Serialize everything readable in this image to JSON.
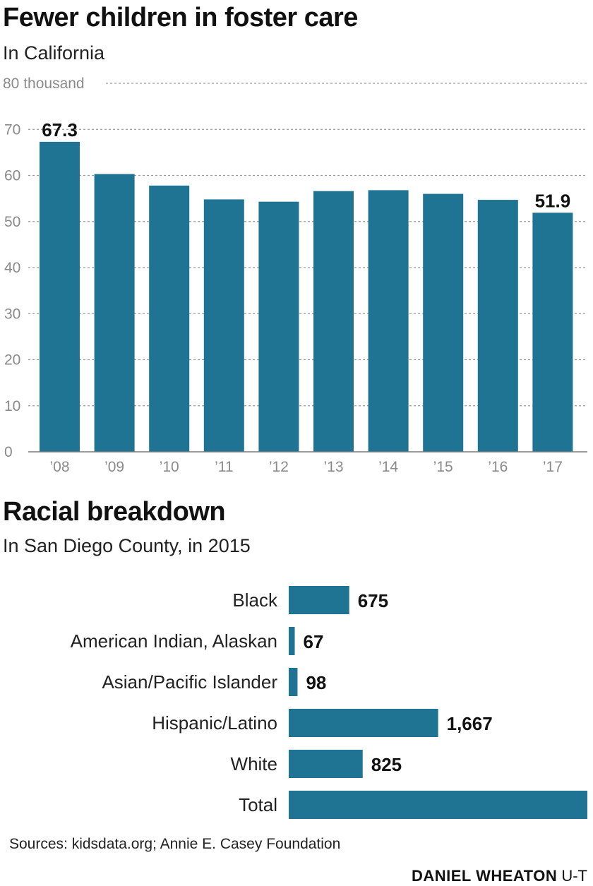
{
  "chart_data": [
    {
      "type": "bar",
      "title": "Fewer children in foster care",
      "subtitle": "In California",
      "unit_label": "80 thousand",
      "categories": [
        "’08",
        "’09",
        "’10",
        "’11",
        "’12",
        "’13",
        "’14",
        "’15",
        "’16",
        "’17"
      ],
      "values": [
        67.3,
        60.3,
        57.8,
        54.8,
        54.3,
        56.6,
        56.8,
        56.0,
        54.7,
        51.9
      ],
      "labeled_values": [
        "67.3",
        "",
        "",
        "",
        "",
        "",
        "",
        "",
        "",
        "51.9"
      ],
      "yticks": [
        "0",
        "10",
        "20",
        "30",
        "40",
        "50",
        "60",
        "70"
      ],
      "ylim": [
        0,
        80
      ],
      "grid": true,
      "bar_color": "#1f7393"
    },
    {
      "type": "bar",
      "orientation": "horizontal",
      "title": "Racial breakdown",
      "subtitle": "In San Diego County, in 2015",
      "categories": [
        "Black",
        "American Indian, Alaskan",
        "Asian/Pacific Islander",
        "Hispanic/Latino",
        "White",
        "Total"
      ],
      "values": [
        675,
        67,
        98,
        1667,
        825,
        3332
      ],
      "value_labels": [
        "675",
        "67",
        "98",
        "1,667",
        "825",
        ""
      ],
      "bar_color": "#1f7393"
    }
  ],
  "footer": {
    "source": "Sources: kidsdata.org; Annie E. Casey Foundation",
    "author": "DANIEL WHEATON",
    "org": "U-T"
  }
}
